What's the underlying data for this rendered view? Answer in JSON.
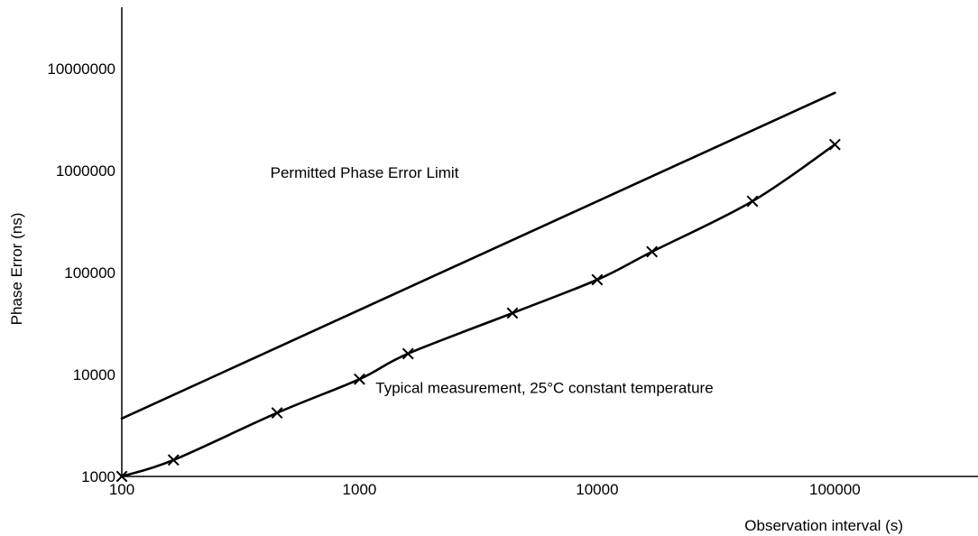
{
  "chart_data": {
    "type": "line",
    "title": "",
    "xlabel": "Observation interval (s)",
    "ylabel": "Phase Error (ns)",
    "x_scale": "log",
    "y_scale": "log",
    "xlim": [
      100,
      400000
    ],
    "ylim": [
      1000,
      40000000
    ],
    "x_ticks": [
      100,
      1000,
      10000,
      100000
    ],
    "x_tick_labels": [
      "100",
      "1000",
      "10000",
      "100000"
    ],
    "y_ticks": [
      1000,
      10000,
      100000,
      1000000,
      10000000
    ],
    "y_tick_labels": [
      "1000",
      "10000",
      "100000",
      "1000000",
      "10000000"
    ],
    "grid": false,
    "legend": "none",
    "series": [
      {
        "label_text": "Permitted Phase Error Limit",
        "marker": "none",
        "x": [
          100,
          100000
        ],
        "y": [
          3700,
          5800000
        ]
      },
      {
        "label_text": "Typical measurement, 25°C constant temperature",
        "marker": "x",
        "x": [
          100,
          165,
          450,
          1000,
          1600,
          4400,
          10000,
          17000,
          45000,
          100000
        ],
        "y": [
          1000,
          1450,
          4200,
          9000,
          16000,
          40000,
          85000,
          160000,
          500000,
          1800000
        ]
      }
    ],
    "annotations": [
      {
        "text": "Permitted Phase Error Limit",
        "x": 1050,
        "y": 850000
      },
      {
        "text": "Typical measurement, 25°C constant temperature",
        "x": 6000,
        "y": 6600
      }
    ],
    "colors": {
      "line": "#000000",
      "background": "#ffffff"
    }
  }
}
